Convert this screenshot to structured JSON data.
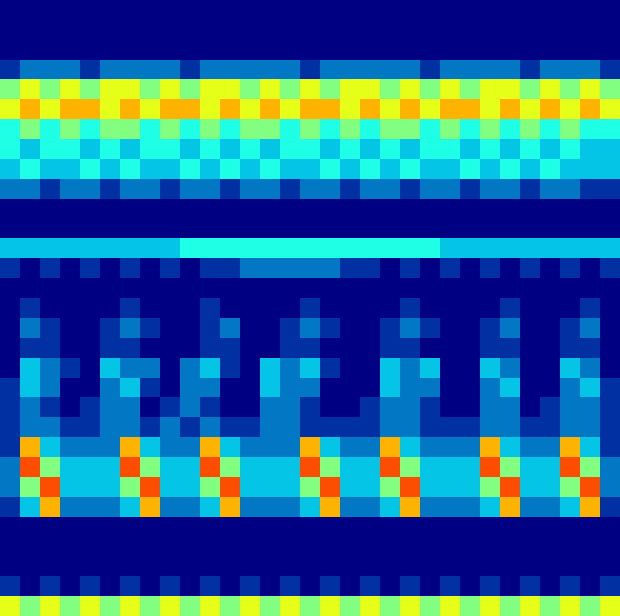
{
  "chart_data": {
    "type": "heatmap",
    "tick_labels": false,
    "grid": false,
    "zlim": [
      0,
      10
    ],
    "cells": [
      [
        0,
        0,
        0,
        0,
        0,
        0,
        0,
        0,
        0,
        0,
        0,
        0,
        0,
        0,
        0,
        0,
        0,
        0,
        0,
        0,
        0,
        0,
        0,
        0,
        0,
        0,
        0,
        0,
        0,
        0,
        0
      ],
      [
        0,
        0,
        0,
        0,
        0,
        0,
        0,
        0,
        0,
        0,
        0,
        0,
        0,
        0,
        0,
        0,
        0,
        0,
        0,
        0,
        0,
        0,
        0,
        0,
        0,
        0,
        0,
        0,
        0,
        0,
        0
      ],
      [
        0,
        0,
        0,
        0,
        0,
        0,
        0,
        0,
        0,
        0,
        0,
        0,
        0,
        0,
        0,
        0,
        0,
        0,
        0,
        0,
        0,
        0,
        0,
        0,
        0,
        0,
        0,
        0,
        0,
        0,
        0
      ],
      [
        1,
        2,
        2,
        2,
        1,
        2,
        2,
        2,
        2,
        1,
        2,
        2,
        2,
        2,
        2,
        1,
        2,
        2,
        2,
        2,
        2,
        1,
        2,
        2,
        2,
        2,
        1,
        2,
        2,
        2,
        1
      ],
      [
        5,
        6,
        5,
        6,
        5,
        6,
        6,
        5,
        6,
        5,
        6,
        6,
        5,
        6,
        5,
        6,
        5,
        6,
        6,
        5,
        6,
        5,
        6,
        5,
        6,
        6,
        5,
        6,
        5,
        6,
        5
      ],
      [
        6,
        7,
        6,
        7,
        7,
        6,
        7,
        6,
        7,
        7,
        6,
        7,
        6,
        7,
        6,
        7,
        7,
        6,
        7,
        6,
        7,
        6,
        7,
        7,
        6,
        7,
        6,
        7,
        6,
        7,
        6
      ],
      [
        4,
        5,
        4,
        5,
        4,
        5,
        5,
        4,
        5,
        4,
        5,
        4,
        5,
        5,
        4,
        5,
        4,
        5,
        4,
        5,
        5,
        4,
        5,
        4,
        5,
        4,
        5,
        4,
        5,
        4,
        4
      ],
      [
        4,
        3,
        4,
        4,
        3,
        4,
        3,
        4,
        4,
        3,
        4,
        3,
        4,
        3,
        4,
        4,
        3,
        4,
        3,
        4,
        3,
        4,
        4,
        3,
        4,
        3,
        4,
        3,
        4,
        3,
        3
      ],
      [
        3,
        4,
        3,
        3,
        4,
        3,
        4,
        3,
        3,
        4,
        3,
        4,
        3,
        4,
        3,
        3,
        4,
        3,
        4,
        3,
        4,
        3,
        3,
        4,
        3,
        4,
        3,
        4,
        3,
        3,
        3
      ],
      [
        2,
        2,
        1,
        2,
        2,
        1,
        2,
        2,
        1,
        2,
        2,
        1,
        2,
        2,
        1,
        2,
        2,
        1,
        2,
        2,
        1,
        2,
        2,
        1,
        2,
        2,
        1,
        2,
        2,
        1,
        1
      ],
      [
        0,
        0,
        0,
        0,
        0,
        0,
        0,
        0,
        0,
        0,
        0,
        0,
        0,
        0,
        0,
        0,
        0,
        0,
        0,
        0,
        0,
        0,
        0,
        0,
        0,
        0,
        0,
        0,
        0,
        0,
        0
      ],
      [
        0,
        0,
        0,
        0,
        0,
        0,
        0,
        0,
        0,
        0,
        0,
        0,
        0,
        0,
        0,
        0,
        0,
        0,
        0,
        0,
        0,
        0,
        0,
        0,
        0,
        0,
        0,
        0,
        0,
        0,
        0
      ],
      [
        3,
        3,
        3,
        3,
        3,
        3,
        3,
        3,
        3,
        4,
        4,
        4,
        4,
        4,
        4,
        4,
        4,
        4,
        4,
        4,
        4,
        4,
        3,
        3,
        3,
        3,
        3,
        3,
        3,
        3,
        3
      ],
      [
        1,
        0,
        1,
        0,
        1,
        0,
        1,
        0,
        1,
        0,
        1,
        1,
        2,
        2,
        2,
        2,
        2,
        1,
        1,
        0,
        1,
        0,
        1,
        0,
        1,
        0,
        1,
        0,
        1,
        0,
        1
      ],
      [
        0,
        0,
        0,
        0,
        0,
        0,
        0,
        0,
        0,
        0,
        0,
        0,
        0,
        0,
        0,
        0,
        0,
        0,
        0,
        0,
        0,
        0,
        0,
        0,
        0,
        0,
        0,
        0,
        0,
        0,
        0
      ],
      [
        0,
        1,
        0,
        0,
        0,
        0,
        1,
        0,
        0,
        0,
        1,
        0,
        0,
        0,
        0,
        1,
        0,
        0,
        0,
        0,
        1,
        0,
        0,
        0,
        0,
        1,
        0,
        0,
        0,
        1,
        0
      ],
      [
        0,
        2,
        1,
        0,
        0,
        1,
        2,
        1,
        0,
        0,
        1,
        2,
        0,
        0,
        1,
        2,
        1,
        0,
        0,
        1,
        2,
        1,
        0,
        0,
        1,
        2,
        0,
        0,
        1,
        2,
        0
      ],
      [
        0,
        1,
        1,
        0,
        0,
        1,
        1,
        0,
        0,
        0,
        1,
        1,
        0,
        0,
        1,
        1,
        0,
        0,
        0,
        1,
        1,
        0,
        0,
        0,
        1,
        1,
        0,
        0,
        1,
        1,
        0
      ],
      [
        0,
        3,
        2,
        1,
        0,
        3,
        2,
        2,
        0,
        2,
        3,
        1,
        0,
        3,
        2,
        3,
        1,
        0,
        0,
        3,
        2,
        3,
        0,
        0,
        3,
        2,
        0,
        0,
        3,
        2,
        0
      ],
      [
        1,
        3,
        2,
        0,
        0,
        2,
        3,
        1,
        0,
        2,
        2,
        0,
        0,
        3,
        2,
        2,
        0,
        0,
        0,
        3,
        2,
        2,
        0,
        0,
        2,
        3,
        0,
        0,
        2,
        3,
        1
      ],
      [
        1,
        2,
        1,
        0,
        1,
        2,
        2,
        0,
        1,
        2,
        1,
        0,
        0,
        2,
        2,
        1,
        0,
        0,
        1,
        2,
        2,
        1,
        0,
        0,
        2,
        2,
        0,
        1,
        2,
        2,
        1
      ],
      [
        1,
        2,
        2,
        1,
        1,
        2,
        2,
        1,
        2,
        1,
        2,
        1,
        1,
        2,
        2,
        1,
        1,
        1,
        1,
        2,
        2,
        1,
        1,
        1,
        2,
        2,
        1,
        1,
        2,
        2,
        1
      ],
      [
        1,
        7,
        3,
        2,
        2,
        2,
        7,
        3,
        2,
        2,
        7,
        3,
        2,
        2,
        2,
        7,
        3,
        2,
        2,
        7,
        3,
        2,
        2,
        2,
        7,
        3,
        2,
        2,
        7,
        3,
        1
      ],
      [
        2,
        8,
        5,
        3,
        3,
        3,
        8,
        5,
        3,
        3,
        8,
        5,
        3,
        3,
        3,
        8,
        5,
        3,
        3,
        8,
        5,
        3,
        3,
        3,
        8,
        5,
        3,
        3,
        8,
        5,
        2
      ],
      [
        2,
        5,
        8,
        3,
        3,
        3,
        5,
        8,
        3,
        3,
        5,
        8,
        3,
        3,
        3,
        5,
        8,
        3,
        3,
        5,
        8,
        3,
        3,
        3,
        5,
        8,
        3,
        3,
        5,
        8,
        2
      ],
      [
        1,
        3,
        7,
        2,
        2,
        2,
        3,
        7,
        2,
        2,
        3,
        7,
        2,
        2,
        2,
        3,
        7,
        2,
        2,
        3,
        7,
        2,
        2,
        2,
        3,
        7,
        2,
        2,
        3,
        7,
        1
      ],
      [
        0,
        0,
        0,
        0,
        0,
        0,
        0,
        0,
        0,
        0,
        0,
        0,
        0,
        0,
        0,
        0,
        0,
        0,
        0,
        0,
        0,
        0,
        0,
        0,
        0,
        0,
        0,
        0,
        0,
        0,
        0
      ],
      [
        0,
        0,
        0,
        0,
        0,
        0,
        0,
        0,
        0,
        0,
        0,
        0,
        0,
        0,
        0,
        0,
        0,
        0,
        0,
        0,
        0,
        0,
        0,
        0,
        0,
        0,
        0,
        0,
        0,
        0,
        0
      ],
      [
        0,
        0,
        0,
        0,
        0,
        0,
        0,
        0,
        0,
        0,
        0,
        0,
        0,
        0,
        0,
        0,
        0,
        0,
        0,
        0,
        0,
        0,
        0,
        0,
        0,
        0,
        0,
        0,
        0,
        0,
        0
      ],
      [
        1,
        0,
        1,
        0,
        1,
        0,
        1,
        0,
        1,
        0,
        1,
        0,
        1,
        0,
        1,
        0,
        1,
        0,
        1,
        0,
        1,
        0,
        1,
        0,
        1,
        0,
        1,
        0,
        1,
        0,
        1
      ],
      [
        6,
        5,
        6,
        5,
        6,
        5,
        6,
        5,
        6,
        5,
        6,
        5,
        6,
        5,
        6,
        5,
        6,
        5,
        6,
        5,
        6,
        5,
        6,
        5,
        6,
        5,
        6,
        5,
        6,
        5,
        6
      ]
    ]
  }
}
